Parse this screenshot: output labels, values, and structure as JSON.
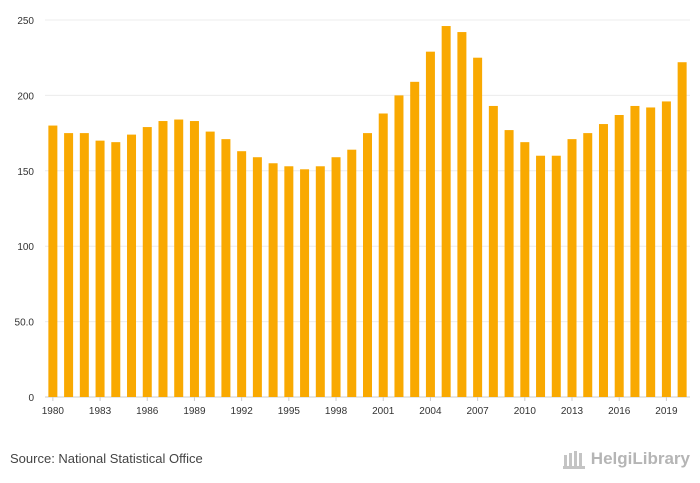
{
  "chart_data": {
    "type": "bar",
    "title": "",
    "xlabel": "",
    "ylabel": "",
    "ylim": [
      0,
      250
    ],
    "yticks": [
      0,
      50,
      100,
      150,
      200,
      250
    ],
    "ytick_labels": [
      "0",
      "50.0",
      "100",
      "150",
      "200",
      "250"
    ],
    "xtick_labels": [
      "1980",
      "1983",
      "1986",
      "1989",
      "1992",
      "1995",
      "1998",
      "2001",
      "2004",
      "2007",
      "2010",
      "2013",
      "2016",
      "2019"
    ],
    "categories": [
      "1980",
      "1981",
      "1982",
      "1983",
      "1984",
      "1985",
      "1986",
      "1987",
      "1988",
      "1989",
      "1990",
      "1991",
      "1992",
      "1993",
      "1994",
      "1995",
      "1996",
      "1997",
      "1998",
      "1999",
      "2000",
      "2001",
      "2002",
      "2003",
      "2004",
      "2005",
      "2006",
      "2007",
      "2008",
      "2009",
      "2010",
      "2011",
      "2012",
      "2013",
      "2014",
      "2015",
      "2016",
      "2017",
      "2018",
      "2019",
      "2020"
    ],
    "values": [
      180,
      175,
      175,
      170,
      169,
      174,
      179,
      183,
      184,
      183,
      176,
      171,
      163,
      159,
      155,
      153,
      151,
      153,
      159,
      164,
      175,
      188,
      200,
      209,
      229,
      246,
      242,
      225,
      193,
      177,
      169,
      160,
      160,
      171,
      175,
      181,
      187,
      193,
      192,
      196,
      222
    ],
    "bar_color": "#f9a901",
    "grid": true
  },
  "footer": {
    "source": "Source: National Statistical Office",
    "logo_text": "HelgiLibrary"
  }
}
